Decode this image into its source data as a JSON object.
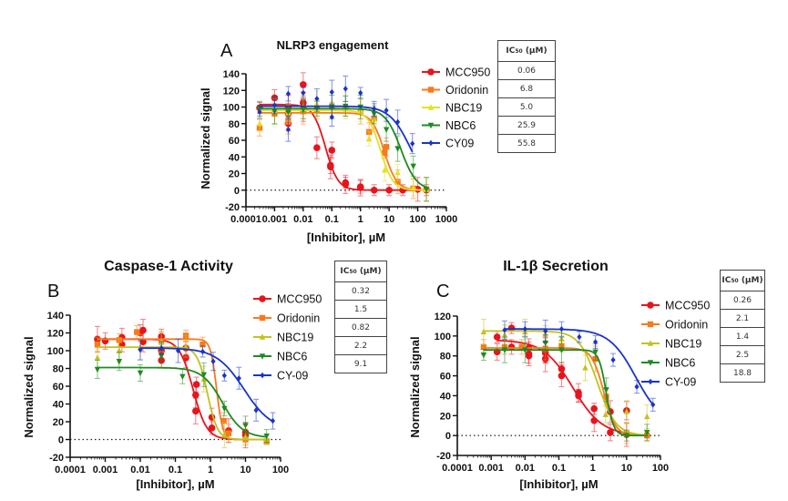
{
  "chart_data": [
    {
      "type": "scatter",
      "panel_label": "A",
      "title": "NLRP3 engagement",
      "xlabel": "[Inhibitor], µM",
      "ylabel": "Normalized signal",
      "xscale": "log",
      "xlim": [
        0.0001,
        1000
      ],
      "ylim": [
        -20,
        140
      ],
      "xticks": [
        "0.0001",
        "0.001",
        "0.01",
        "0.1",
        "1",
        "10",
        "100",
        "1000"
      ],
      "yticks": [
        -20,
        0,
        20,
        40,
        60,
        80,
        100,
        120,
        140
      ],
      "reference_line": 0,
      "legend_position": "right",
      "ic50_header": "IC50 (µM)",
      "series": [
        {
          "name": "MCC950",
          "color": "#e8141c",
          "marker": "circle",
          "top": 103,
          "bottom": 0,
          "ic50_text": "0.06",
          "ic50": 0.06,
          "hill": 2.0,
          "points": [
            [
              0.0003,
              99
            ],
            [
              0.001,
              111
            ],
            [
              0.003,
              92
            ],
            [
              0.003,
              100
            ],
            [
              0.003,
              80
            ],
            [
              0.01,
              105
            ],
            [
              0.01,
              127
            ],
            [
              0.01,
              96
            ],
            [
              0.03,
              51
            ],
            [
              0.1,
              48
            ],
            [
              0.09,
              30
            ],
            [
              0.09,
              28
            ],
            [
              0.3,
              9
            ],
            [
              0.3,
              7
            ],
            [
              1,
              4
            ],
            [
              1,
              3
            ],
            [
              3,
              0
            ],
            [
              10,
              0
            ],
            [
              30,
              0
            ],
            [
              100,
              1
            ],
            [
              200,
              0
            ]
          ]
        },
        {
          "name": "Oridonin",
          "color": "#f77a1c",
          "marker": "square",
          "top": 93,
          "bottom": 0,
          "ic50_text": "6.8",
          "ic50": 6.8,
          "hill": 2.0,
          "points": [
            [
              0.0003,
              75
            ],
            [
              0.001,
              92
            ],
            [
              0.003,
              82
            ],
            [
              0.01,
              95
            ],
            [
              0.03,
              97
            ],
            [
              0.1,
              99
            ],
            [
              0.3,
              98
            ],
            [
              1,
              95
            ],
            [
              2,
              70
            ],
            [
              3,
              86
            ],
            [
              7,
              45
            ],
            [
              8,
              52
            ],
            [
              20,
              10
            ],
            [
              70,
              2
            ],
            [
              200,
              1
            ]
          ]
        },
        {
          "name": "NBC19",
          "color": "#e6e02a",
          "marker": "triangle-up",
          "top": 96,
          "bottom": 0,
          "ic50_text": "5.0",
          "ic50": 5.0,
          "hill": 2.0,
          "points": [
            [
              0.0003,
              80
            ],
            [
              0.001,
              95
            ],
            [
              0.003,
              93
            ],
            [
              0.01,
              100
            ],
            [
              0.03,
              104
            ],
            [
              0.1,
              105
            ],
            [
              0.3,
              100
            ],
            [
              1,
              96
            ],
            [
              2,
              62
            ],
            [
              3,
              85
            ],
            [
              7,
              24
            ],
            [
              20,
              21
            ],
            [
              70,
              3
            ],
            [
              200,
              1
            ]
          ]
        },
        {
          "name": "NBC6",
          "color": "#1f8a20",
          "marker": "triangle-down",
          "top": 98,
          "bottom": 0,
          "ic50_text": "25.9",
          "ic50": 25.9,
          "hill": 1.6,
          "points": [
            [
              0.0003,
              98
            ],
            [
              0.001,
              95
            ],
            [
              0.003,
              94
            ],
            [
              0.01,
              97
            ],
            [
              0.03,
              98
            ],
            [
              0.1,
              100
            ],
            [
              0.3,
              101
            ],
            [
              1,
              100
            ],
            [
              3,
              92
            ],
            [
              8,
              73
            ],
            [
              20,
              50
            ],
            [
              70,
              29
            ],
            [
              200,
              1
            ]
          ]
        },
        {
          "name": "CY09",
          "color": "#1a34c8",
          "marker": "diamond",
          "top": 101,
          "bottom": 0,
          "ic50_text": "55.8",
          "ic50": 55.8,
          "hill": 1.2,
          "points": [
            [
              0.0003,
              94
            ],
            [
              0.001,
              102
            ],
            [
              0.003,
              116
            ],
            [
              0.003,
              73
            ],
            [
              0.01,
              117
            ],
            [
              0.03,
              110
            ],
            [
              0.1,
              118
            ],
            [
              0.1,
              88
            ],
            [
              0.3,
              122
            ],
            [
              1,
              117
            ],
            [
              3,
              98
            ],
            [
              8,
              96
            ],
            [
              20,
              82
            ],
            [
              65,
              56
            ]
          ]
        }
      ]
    },
    {
      "type": "scatter",
      "panel_label": "B",
      "title": "Caspase-1 Activity",
      "xlabel": "[Inhibitor], µM",
      "ylabel": "Normalized signal",
      "xscale": "log",
      "xlim": [
        0.0001,
        100
      ],
      "ylim": [
        -20,
        140
      ],
      "xticks": [
        "0.0001",
        "0.001",
        "0.01",
        "0.1",
        "1",
        "10",
        "100"
      ],
      "yticks": [
        -20,
        0,
        20,
        40,
        60,
        80,
        100,
        120,
        140
      ],
      "reference_line": 0,
      "legend_position": "right",
      "ic50_header": "IC50 (µM)",
      "series": [
        {
          "name": "MCC950",
          "color": "#e8141c",
          "marker": "circle",
          "top": 113,
          "bottom": 0,
          "ic50_text": "0.32",
          "ic50": 0.32,
          "hill": 2.2,
          "points": [
            [
              0.0006,
              113
            ],
            [
              0.001,
              111
            ],
            [
              0.003,
              115
            ],
            [
              0.003,
              107
            ],
            [
              0.01,
              120
            ],
            [
              0.012,
              123
            ],
            [
              0.012,
              110
            ],
            [
              0.04,
              116
            ],
            [
              0.04,
              100
            ],
            [
              0.04,
              89
            ],
            [
              0.2,
              103
            ],
            [
              0.2,
              92
            ],
            [
              0.4,
              62
            ],
            [
              0.38,
              50
            ],
            [
              0.38,
              32
            ],
            [
              1.1,
              25
            ],
            [
              1.1,
              13
            ],
            [
              3.3,
              10
            ],
            [
              10,
              8
            ],
            [
              10,
              5
            ]
          ]
        },
        {
          "name": "Oridonin",
          "color": "#f77a1c",
          "marker": "square",
          "top": 113,
          "bottom": 0,
          "ic50_text": "1.5",
          "ic50": 1.5,
          "hill": 5.0,
          "points": [
            [
              0.0006,
              107
            ],
            [
              0.0025,
              112
            ],
            [
              0.008,
              121
            ],
            [
              0.04,
              110
            ],
            [
              0.2,
              117
            ],
            [
              0.6,
              107
            ],
            [
              2.4,
              21
            ],
            [
              3.3,
              7
            ],
            [
              10,
              0
            ],
            [
              40,
              -2
            ]
          ]
        },
        {
          "name": "NBC19",
          "color": "#c2c21e",
          "marker": "triangle-up",
          "top": 104,
          "bottom": 0,
          "ic50_text": "0.82",
          "ic50": 0.82,
          "hill": 3.0,
          "points": [
            [
              0.0006,
              92
            ],
            [
              0.0025,
              100
            ],
            [
              0.01,
              104
            ],
            [
              0.04,
              110
            ],
            [
              0.2,
              105
            ],
            [
              0.65,
              68
            ],
            [
              2.5,
              5
            ],
            [
              10,
              3
            ],
            [
              40,
              0
            ]
          ]
        },
        {
          "name": "NBC6",
          "color": "#1f8a20",
          "marker": "triangle-down",
          "top": 81,
          "bottom": 2,
          "ic50_text": "2.2",
          "ic50": 2.2,
          "hill": 1.5,
          "points": [
            [
              0.0006,
              79
            ],
            [
              0.0025,
              88
            ],
            [
              0.01,
              75
            ],
            [
              0.04,
              94
            ],
            [
              0.16,
              71
            ],
            [
              0.65,
              73
            ],
            [
              2.5,
              35
            ],
            [
              10,
              16
            ],
            [
              40,
              4
            ]
          ]
        },
        {
          "name": "CY-09",
          "color": "#1a34c8",
          "marker": "diamond",
          "top": 103,
          "bottom": 10,
          "ic50_text": "9.1",
          "ic50": 9.1,
          "hill": 1.1,
          "points": [
            [
              0.01,
              101
            ],
            [
              0.04,
              103
            ],
            [
              0.12,
              100
            ],
            [
              0.6,
              99
            ],
            [
              1.2,
              88
            ],
            [
              2.5,
              72
            ],
            [
              6.5,
              69
            ],
            [
              20,
              33
            ],
            [
              60,
              21
            ]
          ]
        }
      ]
    },
    {
      "type": "scatter",
      "panel_label": "C",
      "title": "IL-1β Secretion",
      "xlabel": "[Inhibitor], µM",
      "ylabel": "Normalized signal",
      "xscale": "log",
      "xlim": [
        0.0001,
        100
      ],
      "ylim": [
        -20,
        120
      ],
      "xticks": [
        "0.0001",
        "0.001",
        "0.01",
        "0.1",
        "1",
        "10",
        "100"
      ],
      "yticks": [
        -20,
        0,
        20,
        40,
        60,
        80,
        100,
        120
      ],
      "reference_line": 0,
      "legend_position": "right",
      "ic50_header": "IC50 (µM)",
      "series": [
        {
          "name": "MCC950",
          "color": "#e8141c",
          "marker": "circle",
          "top": 96,
          "bottom": 0,
          "ic50_text": "0.26",
          "ic50": 0.26,
          "hill": 1.0,
          "points": [
            [
              0.0015,
              99
            ],
            [
              0.0015,
              84
            ],
            [
              0.004,
              108
            ],
            [
              0.004,
              89
            ],
            [
              0.013,
              88
            ],
            [
              0.013,
              82
            ],
            [
              0.013,
              80
            ],
            [
              0.04,
              86
            ],
            [
              0.04,
              83
            ],
            [
              0.04,
              77
            ],
            [
              0.12,
              67
            ],
            [
              0.12,
              60
            ],
            [
              0.38,
              43
            ],
            [
              0.38,
              40
            ],
            [
              1.1,
              27
            ],
            [
              1.1,
              15
            ],
            [
              3.3,
              24
            ],
            [
              3.3,
              3
            ],
            [
              10,
              25
            ],
            [
              10,
              1
            ]
          ]
        },
        {
          "name": "Oridonin",
          "color": "#f77a1c",
          "marker": "square",
          "top": 88,
          "bottom": 0,
          "ic50_text": "2.1",
          "ic50": 2.1,
          "hill": 2.5,
          "points": [
            [
              0.0006,
              89
            ],
            [
              0.0025,
              89
            ],
            [
              0.008,
              89
            ],
            [
              0.04,
              87
            ],
            [
              0.12,
              90
            ],
            [
              1.2,
              77
            ],
            [
              2.5,
              39
            ],
            [
              10,
              2
            ],
            [
              40,
              0
            ]
          ]
        },
        {
          "name": "NBC19",
          "color": "#c2c21e",
          "marker": "triangle-up",
          "top": 105,
          "bottom": 0,
          "ic50_text": "1.4",
          "ic50": 1.4,
          "hill": 1.6,
          "points": [
            [
              0.0006,
              104
            ],
            [
              0.0025,
              101
            ],
            [
              0.01,
              104
            ],
            [
              0.04,
              102
            ],
            [
              0.12,
              97
            ],
            [
              0.6,
              68
            ],
            [
              2.4,
              21
            ],
            [
              10,
              24
            ],
            [
              40,
              19
            ]
          ]
        },
        {
          "name": "NBC6",
          "color": "#1f8a20",
          "marker": "triangle-down",
          "top": 86,
          "bottom": 0,
          "ic50_text": "2.5",
          "ic50": 2.5,
          "hill": 4.0,
          "points": [
            [
              0.0006,
              81
            ],
            [
              0.0025,
              86
            ],
            [
              0.01,
              86
            ],
            [
              0.04,
              93
            ],
            [
              0.12,
              86
            ],
            [
              1.2,
              84
            ],
            [
              2.5,
              46
            ],
            [
              10,
              0
            ],
            [
              40,
              3
            ]
          ]
        },
        {
          "name": "CY-09",
          "color": "#1a34c8",
          "marker": "diamond",
          "top": 107,
          "bottom": 10,
          "ic50_text": "18.8",
          "ic50": 18.8,
          "hill": 1.1,
          "points": [
            [
              0.0025,
              106
            ],
            [
              0.01,
              107
            ],
            [
              0.04,
              105
            ],
            [
              0.12,
              107
            ],
            [
              0.4,
              99
            ],
            [
              1.2,
              94
            ],
            [
              4,
              76
            ],
            [
              20,
              49
            ],
            [
              60,
              31
            ]
          ]
        }
      ]
    }
  ]
}
